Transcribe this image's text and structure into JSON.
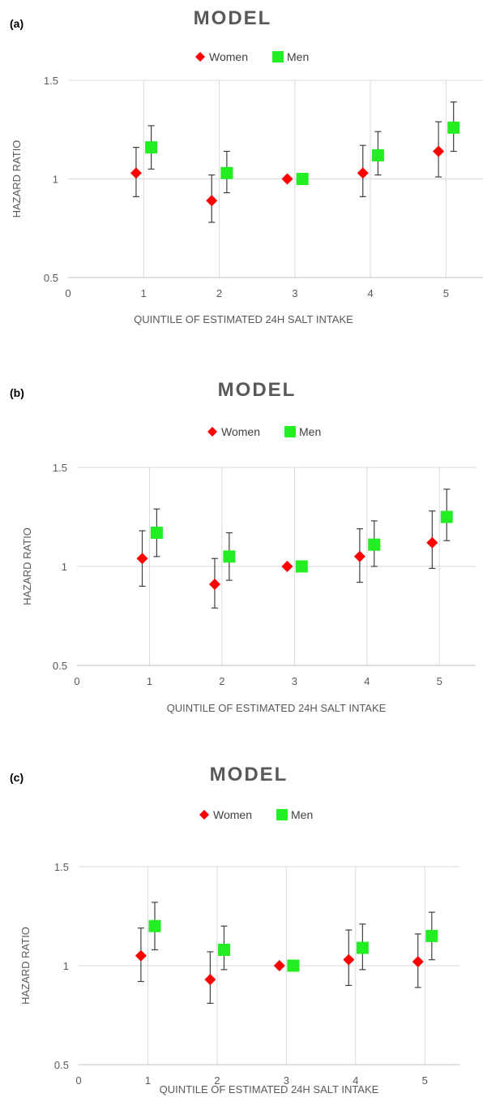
{
  "chart_data": [
    {
      "type": "scatter",
      "panel_label": "(a)",
      "title": "MODEL",
      "xlabel": "QUINTILE OF ESTIMATED 24H SALT INTAKE",
      "ylabel": "HAZARD RATIO",
      "xlim": [
        0,
        5.5
      ],
      "ylim": [
        0.5,
        1.5
      ],
      "xticks": [
        "0",
        "1",
        "2",
        "3",
        "4",
        "5"
      ],
      "yticks": [
        "0.5",
        "1",
        "1.5"
      ],
      "grid": true,
      "legend_position": "top-center",
      "series": [
        {
          "name": "Women",
          "marker": "diamond",
          "color": "#ff0000",
          "x": [
            0.9,
            1.9,
            2.9,
            3.9,
            4.9
          ],
          "y": [
            1.03,
            0.89,
            1.0,
            1.03,
            1.14
          ],
          "lower": [
            0.91,
            0.78,
            1.0,
            0.91,
            1.01
          ],
          "upper": [
            1.16,
            1.02,
            1.0,
            1.17,
            1.29
          ]
        },
        {
          "name": "Men",
          "marker": "square",
          "color": "#22ee22",
          "x": [
            1.1,
            2.1,
            3.1,
            4.1,
            5.1
          ],
          "y": [
            1.16,
            1.03,
            1.0,
            1.12,
            1.26
          ],
          "lower": [
            1.05,
            0.93,
            1.0,
            1.02,
            1.14
          ],
          "upper": [
            1.27,
            1.14,
            1.0,
            1.24,
            1.39
          ]
        }
      ]
    },
    {
      "type": "scatter",
      "panel_label": "(b)",
      "title": "MODEL",
      "xlabel": "QUINTILE OF ESTIMATED 24H SALT INTAKE",
      "ylabel": "HAZARD RATIO",
      "xlim": [
        0,
        5.5
      ],
      "ylim": [
        0.5,
        1.5
      ],
      "xticks": [
        "0",
        "1",
        "2",
        "3",
        "4",
        "5"
      ],
      "yticks": [
        "0.5",
        "1",
        "1.5"
      ],
      "grid": true,
      "legend_position": "top-center",
      "series": [
        {
          "name": "Women",
          "marker": "diamond",
          "color": "#ff0000",
          "x": [
            0.9,
            1.9,
            2.9,
            3.9,
            4.9
          ],
          "y": [
            1.04,
            0.91,
            1.0,
            1.05,
            1.12
          ],
          "lower": [
            0.9,
            0.79,
            1.0,
            0.92,
            0.99
          ],
          "upper": [
            1.18,
            1.04,
            1.0,
            1.19,
            1.28
          ]
        },
        {
          "name": "Men",
          "marker": "square",
          "color": "#22ee22",
          "x": [
            1.1,
            2.1,
            3.1,
            4.1,
            5.1
          ],
          "y": [
            1.17,
            1.05,
            1.0,
            1.11,
            1.25
          ],
          "lower": [
            1.05,
            0.93,
            1.0,
            1.0,
            1.13
          ],
          "upper": [
            1.29,
            1.17,
            1.0,
            1.23,
            1.39
          ]
        }
      ]
    },
    {
      "type": "scatter",
      "panel_label": "(c)",
      "title": "MODEL",
      "xlabel": "QUINTILE OF ESTIMATED 24H SALT INTAKE",
      "ylabel": "HAZARD RATIO",
      "xlim": [
        0,
        5.5
      ],
      "ylim": [
        0.5,
        1.5
      ],
      "xticks": [
        "0",
        "1",
        "2",
        "3",
        "4",
        "5"
      ],
      "yticks": [
        "0.5",
        "1",
        "1.5"
      ],
      "grid": true,
      "legend_position": "top-center",
      "series": [
        {
          "name": "Women",
          "marker": "diamond",
          "color": "#ff0000",
          "x": [
            0.9,
            1.9,
            2.9,
            3.9,
            4.9
          ],
          "y": [
            1.05,
            0.93,
            1.0,
            1.03,
            1.02
          ],
          "lower": [
            0.92,
            0.81,
            1.0,
            0.9,
            0.89
          ],
          "upper": [
            1.19,
            1.07,
            1.0,
            1.18,
            1.16
          ]
        },
        {
          "name": "Men",
          "marker": "square",
          "color": "#22ee22",
          "x": [
            1.1,
            2.1,
            3.1,
            4.1,
            5.1
          ],
          "y": [
            1.2,
            1.08,
            1.0,
            1.09,
            1.15
          ],
          "lower": [
            1.08,
            0.98,
            1.0,
            0.98,
            1.03
          ],
          "upper": [
            1.32,
            1.2,
            1.0,
            1.21,
            1.27
          ]
        }
      ]
    }
  ]
}
